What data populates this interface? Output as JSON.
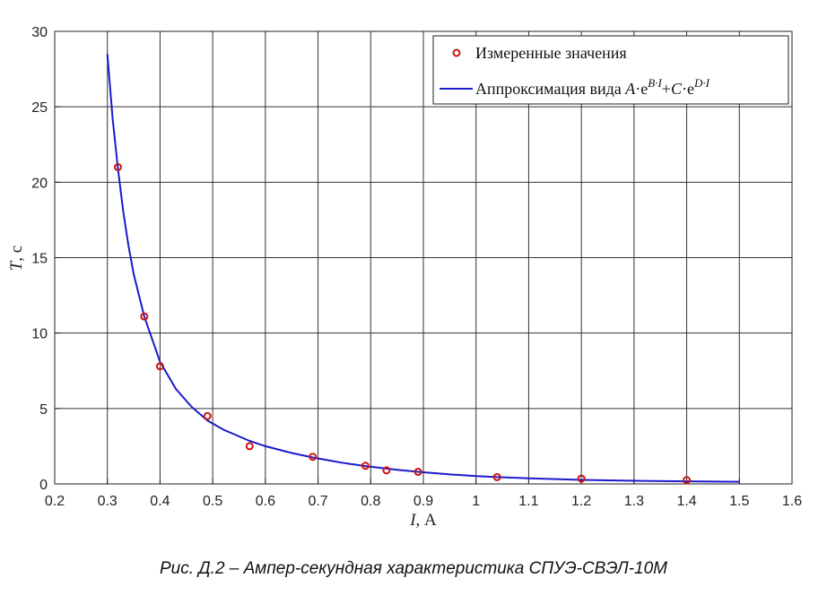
{
  "chart_data": {
    "type": "line",
    "xlabel_var": "I",
    "xlabel_unit": ", А",
    "ylabel_var": "T",
    "ylabel_unit": ", с",
    "xlim": [
      0.2,
      1.6
    ],
    "ylim": [
      0,
      30
    ],
    "xticks": [
      0.2,
      0.3,
      0.4,
      0.5,
      0.6,
      0.7,
      0.8,
      0.9,
      1,
      1.1,
      1.2,
      1.3,
      1.4,
      1.5,
      1.6
    ],
    "xtick_labels": [
      "0.2",
      "0.3",
      "0.4",
      "0.5",
      "0.6",
      "0.7",
      "0.8",
      "0.9",
      "1",
      "1.1",
      "1.2",
      "1.3",
      "1.4",
      "1.5",
      "1.6"
    ],
    "yticks": [
      0,
      5,
      10,
      15,
      20,
      25,
      30
    ],
    "ytick_labels": [
      "0",
      "5",
      "10",
      "15",
      "20",
      "25",
      "30"
    ],
    "grid": true,
    "legend_position": "top-right",
    "series": [
      {
        "name": "Измеренные значения",
        "kind": "scatter",
        "color": "#cc1111",
        "x": [
          0.32,
          0.37,
          0.4,
          0.49,
          0.57,
          0.69,
          0.79,
          0.83,
          0.89,
          1.04,
          1.2,
          1.4
        ],
        "y": [
          21.0,
          11.1,
          7.8,
          4.5,
          2.5,
          1.8,
          1.2,
          0.9,
          0.8,
          0.45,
          0.35,
          0.25
        ]
      },
      {
        "name_prefix": "Аппроксимация вида ",
        "formula": "A·e^(B·I)+C·e^(D·I)",
        "kind": "line",
        "color": "#1a1acc",
        "x": [
          0.3,
          0.31,
          0.32,
          0.33,
          0.34,
          0.35,
          0.37,
          0.4,
          0.43,
          0.46,
          0.49,
          0.52,
          0.57,
          0.6,
          0.65,
          0.69,
          0.75,
          0.79,
          0.85,
          0.89,
          0.95,
          1.0,
          1.04,
          1.1,
          1.2,
          1.3,
          1.4,
          1.5
        ],
        "y": [
          28.5,
          24.2,
          20.9,
          18.1,
          15.8,
          13.9,
          11.1,
          8.1,
          6.3,
          5.1,
          4.2,
          3.6,
          2.85,
          2.5,
          2.05,
          1.75,
          1.38,
          1.18,
          0.93,
          0.8,
          0.63,
          0.52,
          0.45,
          0.37,
          0.27,
          0.21,
          0.17,
          0.14
        ]
      }
    ],
    "legend_formula": {
      "A": "A",
      "e": "e",
      "exp1": "B·I",
      "plus": "+",
      "C": "C",
      "exp2": "D·I",
      "dot": "·"
    }
  },
  "caption": "Рис. Д.2 – Ампер-секундная характеристика СПУЭ-СВЭЛ-10М"
}
